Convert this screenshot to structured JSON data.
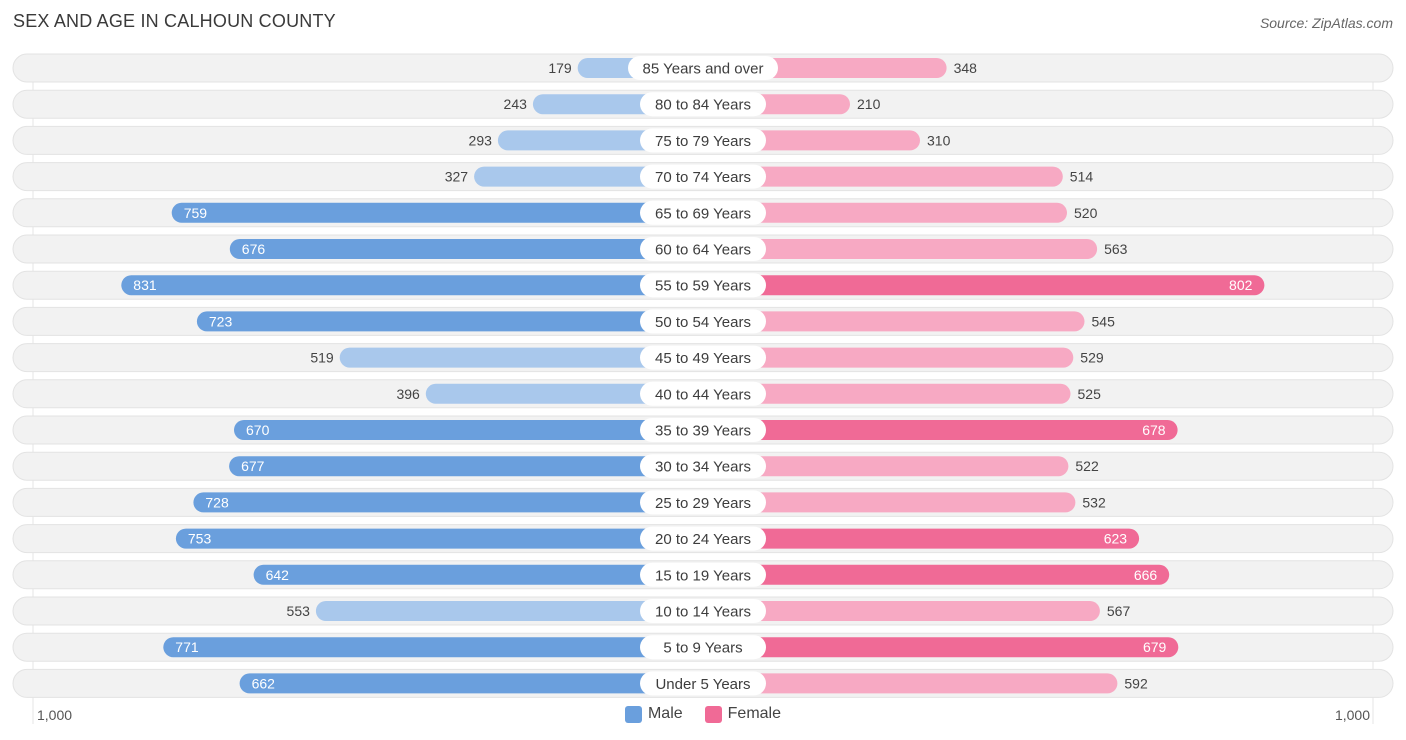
{
  "header": {
    "title": "SEX AND AGE IN CALHOUN COUNTY",
    "source": "Source: ZipAtlas.com"
  },
  "legend": {
    "male": "Male",
    "female": "Female"
  },
  "axis": {
    "left_label": "1,000",
    "right_label": "1,000"
  },
  "colors": {
    "male_strong": "#6a9fdd",
    "male_light": "#a9c8ec",
    "female_strong": "#f06a96",
    "female_light": "#f7a9c3",
    "row_bg": "#f2f2f2"
  },
  "chart_data": {
    "type": "bar",
    "orientation": "horizontal-diverging",
    "title": "SEX AND AGE IN CALHOUN COUNTY",
    "xlim": [
      -1000,
      1000
    ],
    "categories": [
      "85 Years and over",
      "80 to 84 Years",
      "75 to 79 Years",
      "70 to 74 Years",
      "65 to 69 Years",
      "60 to 64 Years",
      "55 to 59 Years",
      "50 to 54 Years",
      "45 to 49 Years",
      "40 to 44 Years",
      "35 to 39 Years",
      "30 to 34 Years",
      "25 to 29 Years",
      "20 to 24 Years",
      "15 to 19 Years",
      "10 to 14 Years",
      "5 to 9 Years",
      "Under 5 Years"
    ],
    "series": [
      {
        "name": "Male",
        "values": [
          179,
          243,
          293,
          327,
          759,
          676,
          831,
          723,
          519,
          396,
          670,
          677,
          728,
          753,
          642,
          553,
          771,
          662
        ]
      },
      {
        "name": "Female",
        "values": [
          348,
          210,
          310,
          514,
          520,
          563,
          802,
          545,
          529,
          525,
          678,
          522,
          532,
          623,
          666,
          567,
          679,
          592
        ]
      }
    ]
  }
}
